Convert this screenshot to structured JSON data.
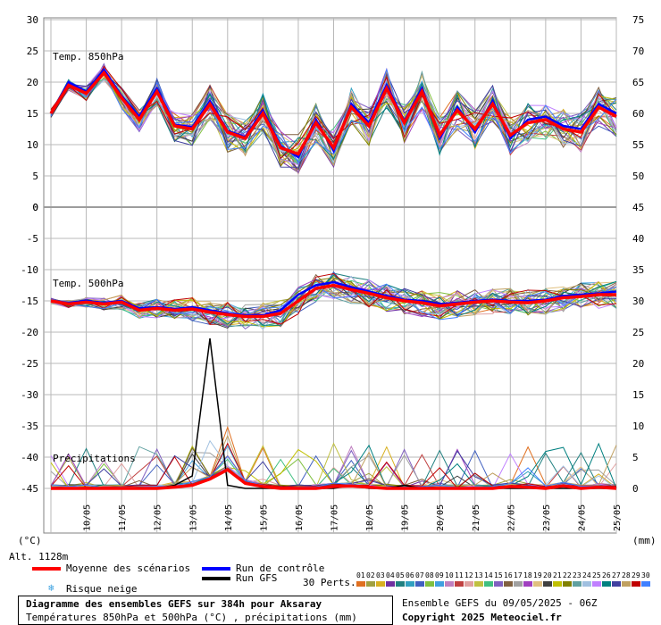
{
  "chart_data": {
    "type": "line",
    "title": "Diagramme des ensembles GEFS sur 384h pour Aksaray",
    "subtitle": "Températures 850hPa et 500hPa (°C) , précipitations (mm)",
    "left_unit": "(°C)",
    "right_unit": "(mm)",
    "altitude": "Alt. 1128m",
    "x_labels": [
      "10/05",
      "11/05",
      "12/05",
      "13/05",
      "14/05",
      "15/05",
      "16/05",
      "17/05",
      "18/05",
      "19/05",
      "20/05",
      "21/05",
      "22/05",
      "23/05",
      "24/05",
      "25/05"
    ],
    "grid": true,
    "panels": [
      {
        "label": "Temp. 850hPa",
        "left_ticks": [
          "30",
          "25",
          "20",
          "15",
          "10",
          "5",
          "0"
        ],
        "right_ticks": [
          "75",
          "70",
          "65",
          "60",
          "55",
          "50"
        ],
        "ylim": [
          0,
          30
        ],
        "x": [
          0,
          0.5,
          1,
          1.5,
          2,
          2.5,
          3,
          3.5,
          4,
          4.5,
          5,
          5.5,
          6,
          6.5,
          7,
          7.5,
          8,
          8.5,
          9,
          9.5,
          10,
          10.5,
          11,
          11.5,
          12,
          12.5,
          13,
          13.5,
          14,
          14.5,
          15,
          15.5,
          16
        ],
        "mean": [
          15,
          19.5,
          18.2,
          21.5,
          17.5,
          14,
          18.5,
          13,
          12.5,
          16.5,
          12,
          11,
          15,
          9.5,
          8.5,
          13.5,
          9.5,
          16,
          13,
          19,
          13.5,
          18.5,
          11.5,
          15.5,
          12.5,
          16.5,
          11.5,
          13.5,
          14,
          12.5,
          12,
          16,
          14.5
        ],
        "control": [
          15,
          20,
          18.5,
          22,
          17.8,
          14.5,
          19,
          13.2,
          12.8,
          17,
          12.2,
          11.2,
          15.5,
          9.8,
          8,
          14,
          9,
          16.5,
          13.5,
          19.5,
          13.8,
          19,
          11,
          16,
          12,
          17,
          11,
          14,
          14.5,
          13,
          12.5,
          16.5,
          15
        ]
      },
      {
        "label": "Temp. 500hPa",
        "left_ticks": [
          "0",
          "-5",
          "-10",
          "-15",
          "-20",
          "-25",
          "-30",
          "-35",
          "-40",
          "-45"
        ],
        "right_ticks": [
          "45",
          "40",
          "35",
          "30",
          "25",
          "20",
          "15",
          "10",
          "5",
          "0"
        ],
        "ylim": [
          -45,
          0
        ],
        "x": [
          0,
          0.5,
          1,
          1.5,
          2,
          2.5,
          3,
          3.5,
          4,
          4.5,
          5,
          5.5,
          6,
          6.5,
          7,
          7.5,
          8,
          8.5,
          9,
          9.5,
          10,
          10.5,
          11,
          11.5,
          12,
          12.5,
          13,
          13.5,
          14,
          14.5,
          15,
          15.5,
          16
        ],
        "mean": [
          -15,
          -15.5,
          -15.2,
          -15.5,
          -15.2,
          -16.5,
          -16.2,
          -16.5,
          -16.3,
          -16.8,
          -17.2,
          -17.5,
          -17.5,
          -17,
          -15,
          -13,
          -12.5,
          -13.2,
          -13.8,
          -14.5,
          -15,
          -15.3,
          -15.8,
          -15.5,
          -15.2,
          -15,
          -15.2,
          -15.3,
          -15,
          -14.5,
          -14.3,
          -14,
          -14
        ],
        "control": [
          -15,
          -15.3,
          -15,
          -15.3,
          -15,
          -16.2,
          -16,
          -16.3,
          -16,
          -16.5,
          -17,
          -17.3,
          -17.3,
          -16.5,
          -14,
          -12.5,
          -12,
          -12.8,
          -13.5,
          -14.2,
          -14.8,
          -15,
          -15.5,
          -15.3,
          -15,
          -14.8,
          -15,
          -15,
          -14.8,
          -14.2,
          -14,
          -13.8,
          -13.5
        ]
      },
      {
        "label": "Précipitations",
        "right_ticks": [
          "15",
          "10",
          "5",
          "0"
        ],
        "unit": "mm",
        "x": [
          0,
          0.5,
          1,
          1.5,
          2,
          2.5,
          3,
          3.5,
          4,
          4.5,
          5,
          5.5,
          6,
          6.5,
          7,
          7.5,
          8,
          8.5,
          9,
          9.5,
          10,
          10.5,
          11,
          11.5,
          12,
          12.5,
          13,
          13.5,
          14,
          14.5,
          15,
          15.5,
          16
        ],
        "mean": [
          0,
          0,
          0,
          0,
          0,
          0,
          0,
          0.2,
          0.5,
          1.5,
          3,
          0.8,
          0.3,
          0,
          0,
          0,
          0.3,
          0.4,
          0.2,
          0,
          0,
          0,
          0,
          0,
          0,
          0,
          0.3,
          0.2,
          0,
          0.4,
          0,
          0.2,
          0
        ],
        "gfs": [
          0,
          0,
          0,
          0,
          0,
          0,
          0,
          0.5,
          2,
          24,
          0.5,
          0,
          0,
          0,
          0,
          0,
          0,
          0.5,
          0,
          0,
          0.5,
          0,
          0,
          0,
          0,
          0,
          0,
          0,
          0,
          0,
          0,
          0,
          0
        ]
      }
    ]
  },
  "legend": {
    "mean_label": "Moyenne des scénarios",
    "control_label": "Run de contrôle",
    "gfs_label": "Run GFS",
    "snow_label": "Risque neige",
    "perts_label": "30 Perts.",
    "mean_color": "#ff0000",
    "control_color": "#0000ff",
    "gfs_color": "#000000",
    "pert_numbers": [
      "01",
      "02",
      "03",
      "04",
      "05",
      "06",
      "07",
      "08",
      "09",
      "10",
      "11",
      "12",
      "13",
      "14",
      "15",
      "16",
      "17",
      "18",
      "19",
      "20",
      "21",
      "22",
      "23",
      "24",
      "25",
      "26",
      "27",
      "28",
      "29",
      "30"
    ],
    "pert_colors": [
      "#e07020",
      "#a0a040",
      "#d8b020",
      "#7030a0",
      "#208080",
      "#30a0c0",
      "#4060c0",
      "#80c040",
      "#40a0e0",
      "#c080c0",
      "#c04040",
      "#e0a0a0",
      "#c0c040",
      "#40c080",
      "#8060c0",
      "#806040",
      "#a0a0a0",
      "#a040c0",
      "#e0c080",
      "#404040",
      "#c0c000",
      "#808000",
      "#60a0a0",
      "#a0c0e0",
      "#c080ff",
      "#008080",
      "#4040a0",
      "#c0a060",
      "#c00000",
      "#4080ff"
    ]
  },
  "footer": {
    "run_info": "Ensemble GEFS du 09/05/2025 - 06Z",
    "copyright": "Copyright 2025 Meteociel.fr"
  }
}
